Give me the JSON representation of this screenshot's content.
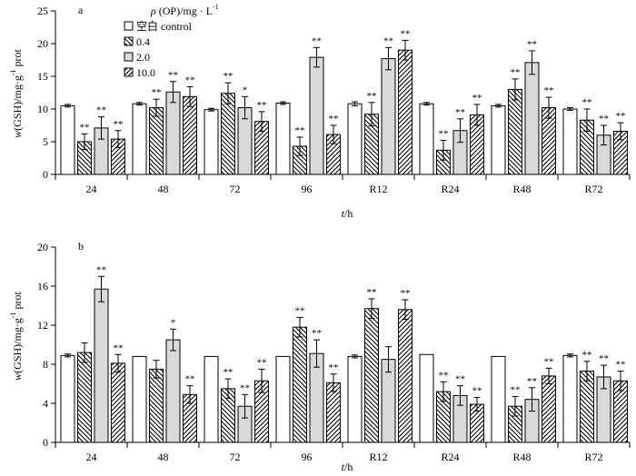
{
  "chart_data": [
    {
      "type": "bar",
      "panel_label": "a",
      "categories": [
        "24",
        "48",
        "72",
        "96",
        "R12",
        "R24",
        "R48",
        "R72"
      ],
      "ylim": [
        0,
        25
      ],
      "yticks": [
        0,
        5,
        10,
        15,
        20,
        25
      ],
      "ylabel": {
        "sym": "w",
        "rest": "(GSH)/mg·g",
        "sup": "-1",
        "tail": "prot"
      },
      "xlabel": {
        "sym": "t",
        "rest": "/h"
      },
      "legend": {
        "title": {
          "sym": "ρ",
          "rest": " (OP)/mg · L",
          "sup": "-1"
        },
        "position": "top-left"
      },
      "series": [
        {
          "name": "空白 control",
          "fill": "white",
          "values": [
            10.5,
            10.8,
            9.9,
            10.9,
            10.8,
            10.8,
            10.5,
            10.0
          ],
          "errors": [
            0.2,
            0.2,
            0.2,
            0.2,
            0.3,
            0.2,
            0.2,
            0.2
          ],
          "marks": [
            "",
            "",
            "",
            "",
            "",
            "",
            "",
            ""
          ]
        },
        {
          "name": "0.4",
          "fill": "hatch-back",
          "values": [
            5.0,
            10.2,
            12.4,
            4.3,
            9.2,
            3.7,
            13.0,
            8.3
          ],
          "errors": [
            1.2,
            1.3,
            1.6,
            1.4,
            1.8,
            1.5,
            1.6,
            1.7
          ],
          "marks": [
            "**",
            "**",
            "**",
            "**",
            "**",
            "**",
            "**",
            "**"
          ]
        },
        {
          "name": "2.0",
          "fill": "gray",
          "values": [
            7.1,
            12.6,
            10.2,
            17.9,
            17.7,
            6.7,
            17.1,
            6.0
          ],
          "errors": [
            1.7,
            1.6,
            1.7,
            1.5,
            1.7,
            1.8,
            1.8,
            1.5
          ],
          "marks": [
            "**",
            "**",
            "*",
            "**",
            "**",
            "**",
            "**",
            "**"
          ]
        },
        {
          "name": "10.0",
          "fill": "hatch-fwd",
          "values": [
            5.4,
            11.9,
            8.1,
            6.1,
            19.0,
            9.1,
            10.2,
            6.6
          ],
          "errors": [
            1.3,
            1.5,
            1.5,
            1.4,
            1.5,
            1.6,
            1.6,
            1.3
          ],
          "marks": [
            "**",
            "**",
            "**",
            "**",
            "**",
            "**",
            "**",
            "**"
          ]
        }
      ]
    },
    {
      "type": "bar",
      "panel_label": "b",
      "categories": [
        "24",
        "48",
        "72",
        "96",
        "R12",
        "R24",
        "R48",
        "R72"
      ],
      "ylim": [
        0,
        20
      ],
      "yticks": [
        0,
        4,
        8,
        12,
        16,
        20
      ],
      "ylabel": {
        "sym": "w",
        "rest": "(GSH)/mg·g",
        "sup": "-1",
        "tail": "prot"
      },
      "xlabel": {
        "sym": "t",
        "rest": "/h"
      },
      "series": [
        {
          "name": "空白 control",
          "fill": "white",
          "values": [
            8.9,
            8.8,
            8.8,
            8.8,
            8.8,
            9.0,
            8.8,
            8.9
          ],
          "errors": [
            0.15,
            0,
            0,
            0,
            0.15,
            0,
            0,
            0.15
          ],
          "marks": [
            "",
            "",
            "",
            "",
            "",
            "",
            "",
            ""
          ]
        },
        {
          "name": "0.4",
          "fill": "hatch-back",
          "values": [
            9.2,
            7.5,
            5.5,
            11.8,
            13.7,
            5.2,
            3.7,
            7.3
          ],
          "errors": [
            1.0,
            0.9,
            1.0,
            1.0,
            1.0,
            1.0,
            1.0,
            1.0
          ],
          "marks": [
            "",
            "",
            "**",
            "**",
            "**",
            "**",
            "**",
            "**"
          ]
        },
        {
          "name": "2.0",
          "fill": "gray",
          "values": [
            15.7,
            10.5,
            3.7,
            9.1,
            8.5,
            4.8,
            4.4,
            6.7
          ],
          "errors": [
            1.3,
            1.1,
            1.2,
            1.4,
            1.3,
            1.0,
            1.2,
            1.2
          ],
          "marks": [
            "**",
            "*",
            "**",
            "**",
            "",
            "**",
            "**",
            "**"
          ]
        },
        {
          "name": "10.0",
          "fill": "hatch-fwd",
          "values": [
            8.1,
            4.9,
            6.3,
            6.1,
            13.6,
            3.9,
            6.8,
            6.3
          ],
          "errors": [
            0.9,
            0.9,
            1.2,
            0.9,
            1.0,
            0.7,
            0.8,
            1.0
          ],
          "marks": [
            "**",
            "**",
            "**",
            "**",
            "**",
            "**",
            "**",
            "**"
          ]
        }
      ]
    }
  ]
}
